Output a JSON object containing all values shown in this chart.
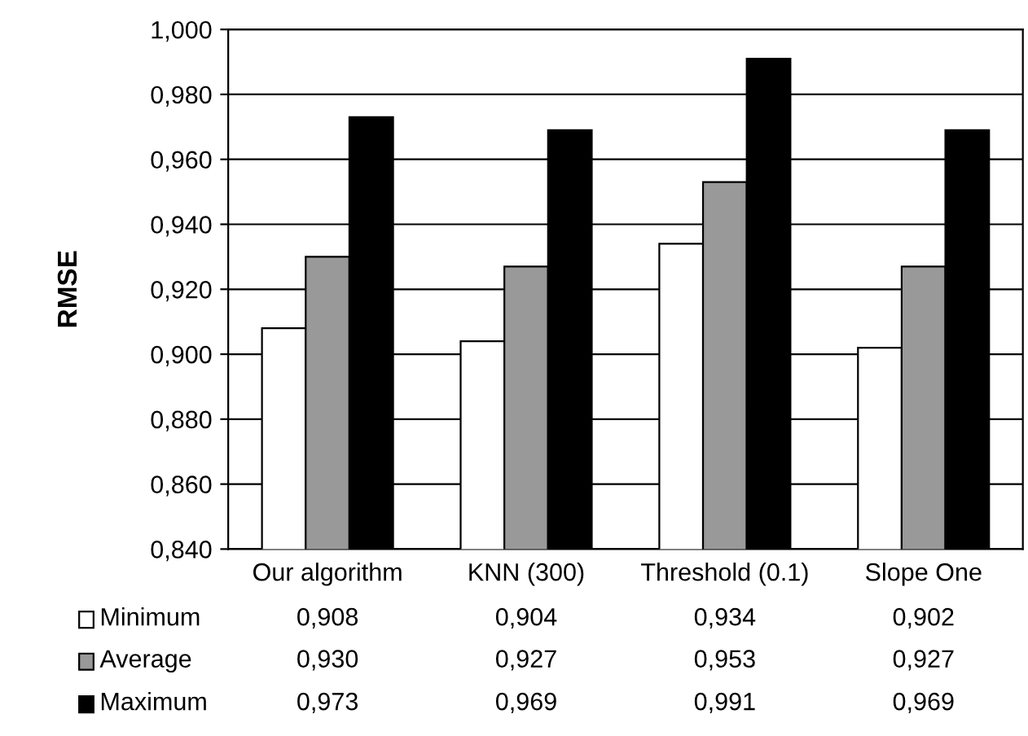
{
  "chart_data": {
    "type": "bar",
    "ylabel": "RMSE",
    "categories": [
      "Our algorithm",
      "KNN (300)",
      "Threshold (0.1)",
      "Slope One"
    ],
    "series": [
      {
        "name": "Minimum",
        "color": "#ffffff",
        "values": [
          0.908,
          0.904,
          0.934,
          0.902
        ],
        "value_labels": [
          "0,908",
          "0,904",
          "0,934",
          "0,902"
        ]
      },
      {
        "name": "Average",
        "color": "#999999",
        "values": [
          0.93,
          0.927,
          0.953,
          0.927
        ],
        "value_labels": [
          "0,930",
          "0,927",
          "0,953",
          "0,927"
        ]
      },
      {
        "name": "Maximum",
        "color": "#000000",
        "values": [
          0.973,
          0.969,
          0.991,
          0.969
        ],
        "value_labels": [
          "0,973",
          "0,969",
          "0,991",
          "0,969"
        ]
      }
    ],
    "ylim": [
      0.84,
      1.0
    ],
    "yticks": [
      {
        "value": 0.84,
        "label": "0,840"
      },
      {
        "value": 0.86,
        "label": "0,860"
      },
      {
        "value": 0.88,
        "label": "0,880"
      },
      {
        "value": 0.9,
        "label": "0,900"
      },
      {
        "value": 0.92,
        "label": "0,920"
      },
      {
        "value": 0.94,
        "label": "0,940"
      },
      {
        "value": 0.96,
        "label": "0,960"
      },
      {
        "value": 0.98,
        "label": "0,980"
      },
      {
        "value": 1.0,
        "label": "1,000"
      }
    ],
    "grid": "y",
    "legend": "bottom"
  }
}
